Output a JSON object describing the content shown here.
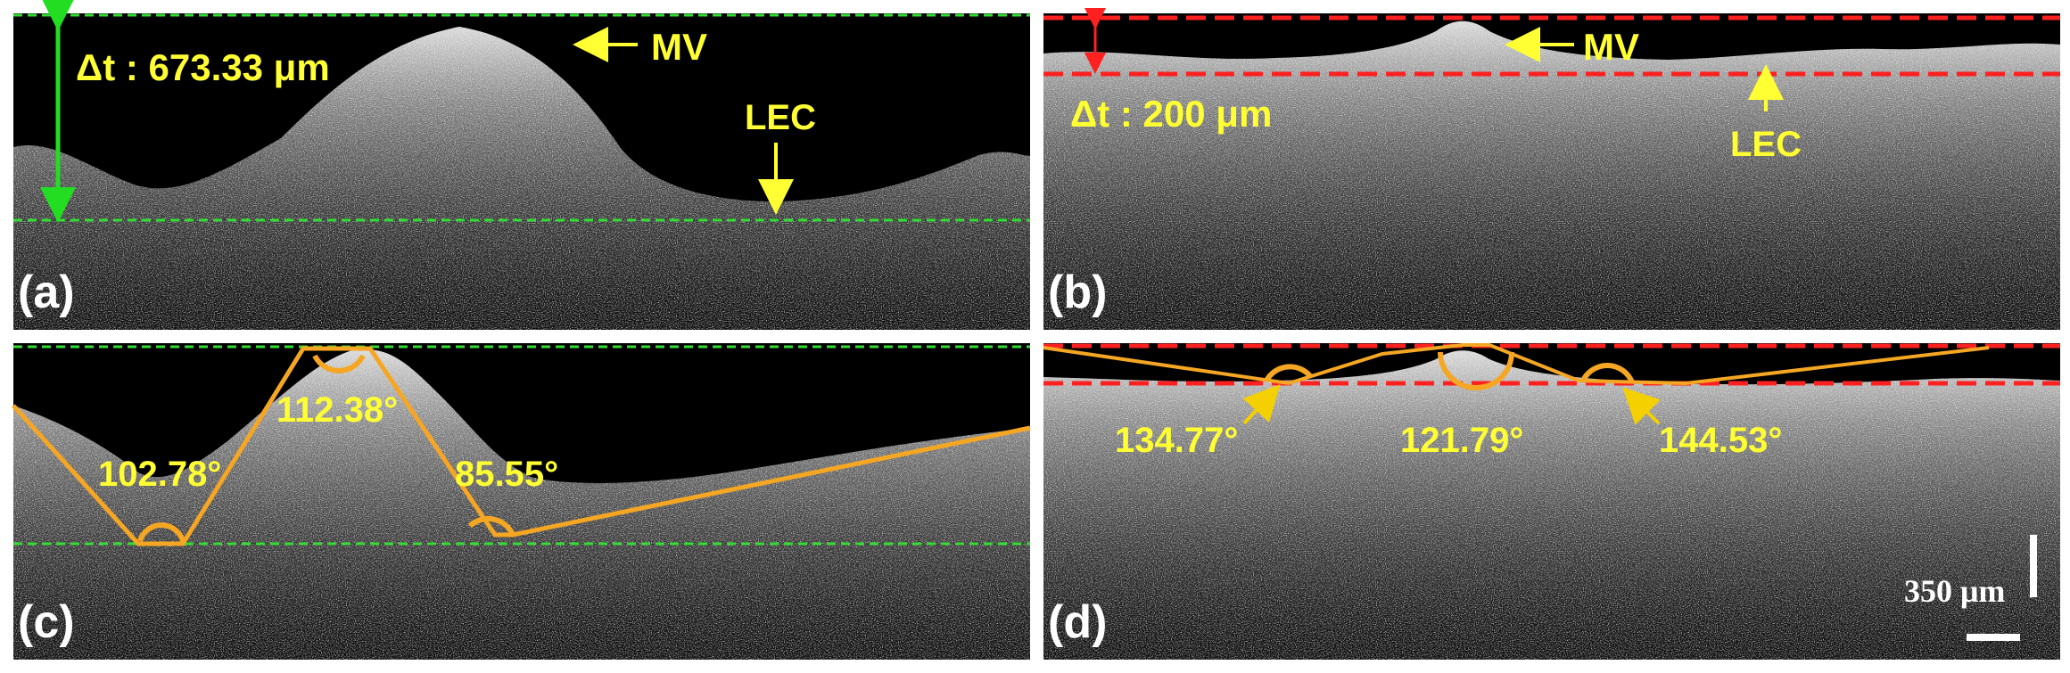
{
  "colors": {
    "annotation_text": "#ffff33",
    "measure_arrow_a": "#22dd22",
    "guide_green": "#33dd33",
    "guide_red": "#ff2020",
    "angle_orange": "#f5a623",
    "panel_background": "#000000",
    "figure_background": "#ffffff"
  },
  "panels": {
    "a": {
      "label": "(a)",
      "thickness": "Δt : 673.33 μm",
      "label_mv": "MV",
      "label_lec": "LEC"
    },
    "b": {
      "label": "(b)",
      "thickness": "Δt : 200 μm",
      "label_mv": "MV",
      "label_lec": "LEC"
    },
    "c": {
      "label": "(c)",
      "angles": [
        "102.78°",
        "112.38°",
        "85.55°"
      ]
    },
    "d": {
      "label": "(d)",
      "angles": [
        "134.77°",
        "121.79°",
        "144.53°"
      ],
      "scale_bar": "350 μm"
    }
  }
}
